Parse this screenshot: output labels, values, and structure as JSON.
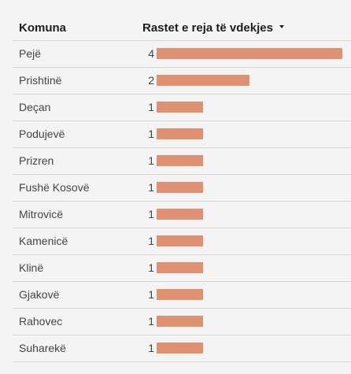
{
  "header": {
    "komuna_label": "Komuna",
    "value_label": "Rastet e reja të vdekjes",
    "sort_icon": "caret-down-icon"
  },
  "colors": {
    "bar": "#e09172"
  },
  "chart_data": {
    "type": "bar",
    "orientation": "horizontal",
    "categories": [
      "Pejë",
      "Prishtinë",
      "Deçan",
      "Podujevë",
      "Prizren",
      "Fushë Kosovë",
      "Mitrovicë",
      "Kamenicë",
      "Klinë",
      "Gjakovë",
      "Rahovec",
      "Suharekë"
    ],
    "values": [
      4,
      2,
      1,
      1,
      1,
      1,
      1,
      1,
      1,
      1,
      1,
      1
    ],
    "xlim": [
      0,
      4
    ],
    "title": "",
    "xlabel": "Rastet e reja të vdekjes",
    "ylabel": "Komuna"
  }
}
